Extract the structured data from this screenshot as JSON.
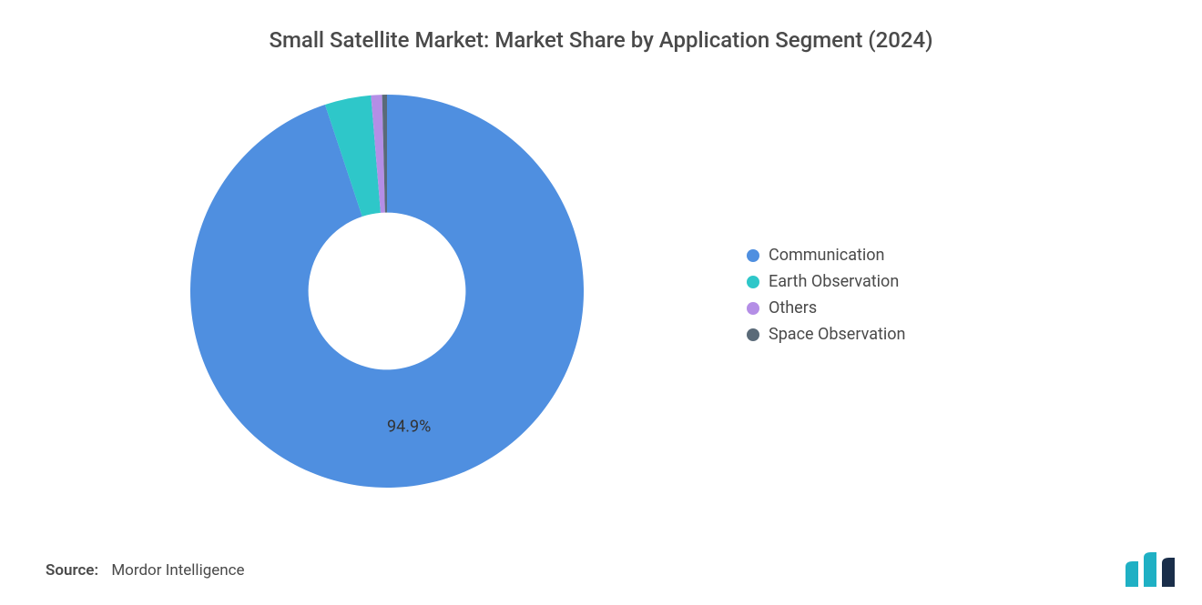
{
  "title": "Small Satellite Market: Market Share by Application Segment (2024)",
  "chart": {
    "type": "donut",
    "inner_radius_pct": 40,
    "outer_radius_pct": 100,
    "background_color": "#ffffff",
    "slices": [
      {
        "label": "Communication",
        "value": 94.9,
        "color": "#4f8fe0",
        "show_label": true,
        "label_text": "94.9%"
      },
      {
        "label": "Earth Observation",
        "value": 3.8,
        "color": "#2ec7c9",
        "show_label": false,
        "label_text": ""
      },
      {
        "label": "Others",
        "value": 0.9,
        "color": "#b48ee6",
        "show_label": false,
        "label_text": ""
      },
      {
        "label": "Space Observation",
        "value": 0.4,
        "color": "#5a6a78",
        "show_label": false,
        "label_text": ""
      }
    ],
    "start_angle_deg": 0,
    "label_fontsize": 18,
    "label_color": "#333333"
  },
  "legend": {
    "fontsize": 18,
    "text_color": "#4a4a4a",
    "items": [
      {
        "label": "Communication",
        "color": "#4f8fe0"
      },
      {
        "label": "Earth Observation",
        "color": "#2ec7c9"
      },
      {
        "label": "Others",
        "color": "#b48ee6"
      },
      {
        "label": "Space Observation",
        "color": "#5a6a78"
      }
    ]
  },
  "footer": {
    "source_label": "Source:",
    "source_value": "Mordor Intelligence"
  },
  "logo": {
    "bar1_color": "#1fb0c4",
    "bar2_color": "#1fb0c4",
    "bar3_color": "#1a2e4a"
  },
  "title_style": {
    "fontsize": 24,
    "color": "#4a4a4a",
    "weight": 500
  }
}
